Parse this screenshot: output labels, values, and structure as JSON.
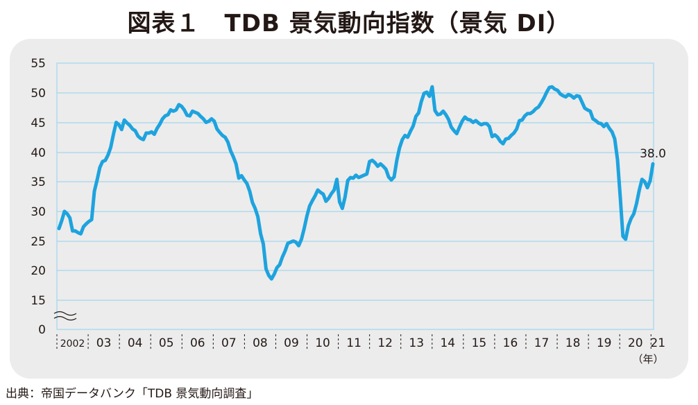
{
  "title": "図表１　TDB 景気動向指数（景気 DI）",
  "source": "出典：帝国データバンク「TDB 景気動向調査」",
  "chart_data": {
    "type": "line",
    "ylim": [
      0,
      55
    ],
    "yticks": [
      "55",
      "50",
      "45",
      "40",
      "35",
      "30",
      "25",
      "20",
      "15",
      "0"
    ],
    "axis_break": "15-0",
    "xtick_labels": [
      "2002",
      "03",
      "04",
      "05",
      "06",
      "07",
      "08",
      "09",
      "10",
      "11",
      "12",
      "13",
      "14",
      "15",
      "16",
      "17",
      "18",
      "19",
      "20",
      "21"
    ],
    "x_unit": "（年）",
    "end_label": "38.0",
    "grid": true,
    "series": [
      {
        "color": "#1ea3de",
        "start": "2002-01",
        "values": [
          27.1,
          28.4,
          30.0,
          29.6,
          28.9,
          26.7,
          26.7,
          26.4,
          26.2,
          27.4,
          27.9,
          28.3,
          28.6,
          33.4,
          35.3,
          37.4,
          38.4,
          38.6,
          39.5,
          40.8,
          43.0,
          45.0,
          44.6,
          43.8,
          45.4,
          44.9,
          44.5,
          43.9,
          43.6,
          42.7,
          42.3,
          42.1,
          43.2,
          43.2,
          43.4,
          43.0,
          44.0,
          44.7,
          45.6,
          46.1,
          46.3,
          47.1,
          46.9,
          47.1,
          48.0,
          47.7,
          47.1,
          46.2,
          46.1,
          46.9,
          46.7,
          46.5,
          46.0,
          45.6,
          45.0,
          45.2,
          45.6,
          45.2,
          43.9,
          43.3,
          42.8,
          42.5,
          41.7,
          40.2,
          39.2,
          38.0,
          35.6,
          36.0,
          35.3,
          34.7,
          33.4,
          31.5,
          30.5,
          29.1,
          26.2,
          24.5,
          20.3,
          19.2,
          18.6,
          19.4,
          20.5,
          21.0,
          22.3,
          23.3,
          24.6,
          24.8,
          25.0,
          24.8,
          24.2,
          25.3,
          27.1,
          29.2,
          30.9,
          31.8,
          32.6,
          33.6,
          33.2,
          32.9,
          31.7,
          32.2,
          33.0,
          33.6,
          35.4,
          31.6,
          30.5,
          32.4,
          35.2,
          35.7,
          35.6,
          36.1,
          35.7,
          35.9,
          36.1,
          36.3,
          38.4,
          38.6,
          38.2,
          37.6,
          38.0,
          37.6,
          37.1,
          35.8,
          35.3,
          35.8,
          38.6,
          40.7,
          42.1,
          42.8,
          42.5,
          43.5,
          44.4,
          46.0,
          46.6,
          48.5,
          49.9,
          50.1,
          49.4,
          51.0,
          47.0,
          46.3,
          46.4,
          46.9,
          46.3,
          45.5,
          44.2,
          43.6,
          43.1,
          44.2,
          45.2,
          45.9,
          45.5,
          45.4,
          45.0,
          45.3,
          44.9,
          44.6,
          44.8,
          44.8,
          44.3,
          42.6,
          42.9,
          42.5,
          41.8,
          41.4,
          42.2,
          42.3,
          42.8,
          43.2,
          43.9,
          45.3,
          45.4,
          46.1,
          46.5,
          46.5,
          46.8,
          47.3,
          47.6,
          48.3,
          49.1,
          50.1,
          50.9,
          51.0,
          50.6,
          50.4,
          49.8,
          49.5,
          49.3,
          49.7,
          49.5,
          49.1,
          49.5,
          49.4,
          48.4,
          47.4,
          47.1,
          46.9,
          45.6,
          45.3,
          44.9,
          44.8,
          44.3,
          44.8,
          44.0,
          43.4,
          42.2,
          38.7,
          32.5,
          25.8,
          25.3,
          27.6,
          28.8,
          29.6,
          31.3,
          33.6,
          35.4,
          35.0,
          34.0,
          35.2,
          38.0
        ]
      }
    ]
  }
}
